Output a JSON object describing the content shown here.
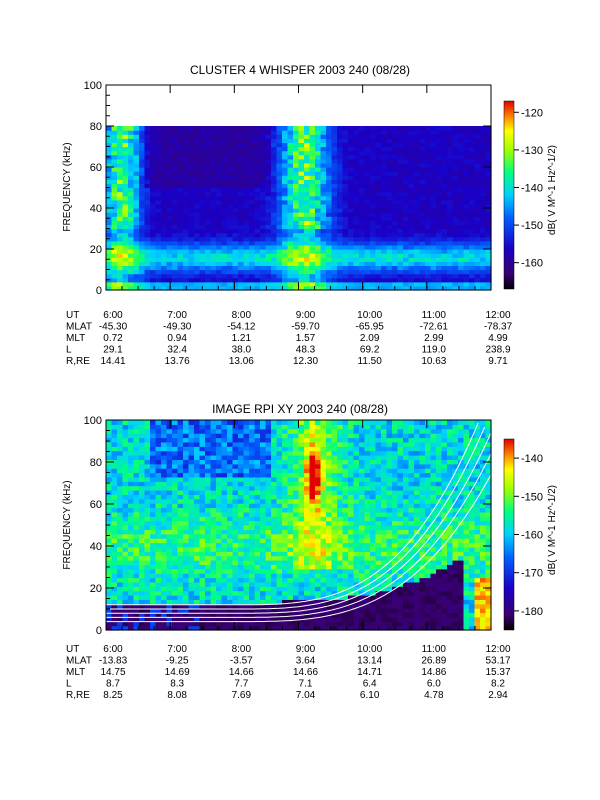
{
  "figure": "spectrogram pair",
  "panels": [
    {
      "id": "whisper",
      "title": "CLUSTER 4 WHISPER 2003 240 (08/28)",
      "ylabel": "FREQUENCY (kHz)",
      "ylim": [
        0,
        100
      ],
      "yticks": [
        "0",
        "20",
        "40",
        "60",
        "80",
        "100"
      ],
      "data_ymax": 80,
      "colorbar": {
        "label": "dB( V M^-1 Hz^-1/2)",
        "range": [
          -167,
          -117
        ],
        "ticks": [
          "-120",
          "-130",
          "-140",
          "-150",
          "-160"
        ]
      },
      "ephemeris_labels": [
        "UT",
        "MLAT",
        "MLT",
        "L",
        "R,RE"
      ],
      "ut": [
        "6:00",
        "7:00",
        "8:00",
        "9:00",
        "10:00",
        "11:00",
        "12:00"
      ],
      "mlat": [
        "-45.30",
        "-49.30",
        "-54.12",
        "-59.70",
        "-65.95",
        "-72.61",
        "-78.37"
      ],
      "mlt": [
        "0.72",
        "0.94",
        "1.21",
        "1.57",
        "2.09",
        "2.99",
        "4.99"
      ],
      "l": [
        "29.1",
        "32.4",
        "38.0",
        "48.3",
        "69.2",
        "119.0",
        "238.9"
      ],
      "r_re": [
        "14.41",
        "13.76",
        "13.06",
        "12.30",
        "11.50",
        "10.63",
        "9.71"
      ]
    },
    {
      "id": "rpi",
      "title": "IMAGE RPI XY 2003 240 (08/28)",
      "ylabel": "FREQUENCY (kHz)",
      "ylim": [
        0,
        100
      ],
      "yticks": [
        "0",
        "20",
        "40",
        "60",
        "80",
        "100"
      ],
      "data_ymax": 100,
      "colorbar": {
        "label": "dB( V M^-1 Hz^-1/2)",
        "range": [
          -185,
          -135
        ],
        "ticks": [
          "-140",
          "-150",
          "-160",
          "-170",
          "-180"
        ]
      },
      "ephemeris_labels": [
        "UT",
        "MLAT",
        "MLT",
        "L",
        "R,RE"
      ],
      "ut": [
        "6:00",
        "7:00",
        "8:00",
        "9:00",
        "10:00",
        "11:00",
        "12:00"
      ],
      "mlat": [
        "-13.83",
        "-9.25",
        "-3.57",
        "3.64",
        "13.14",
        "26.89",
        "53.17"
      ],
      "mlt": [
        "14.75",
        "14.69",
        "14.66",
        "14.66",
        "14.71",
        "14.86",
        "15.37"
      ],
      "l": [
        "8.7",
        "8.3",
        "7.7",
        "7.1",
        "6.4",
        "6.0",
        "8.2"
      ],
      "r_re": [
        "8.25",
        "8.08",
        "7.69",
        "7.04",
        "6.10",
        "4.78",
        "2.94"
      ]
    }
  ],
  "chart_data": [
    {
      "type": "heatmap",
      "title": "CLUSTER 4 WHISPER 2003 240 (08/28)",
      "xlabel": "",
      "ylabel": "FREQUENCY (kHz)",
      "x": [
        "6:00",
        "7:00",
        "8:00",
        "9:00",
        "10:00",
        "11:00",
        "12:00"
      ],
      "xlim": [
        "6:00",
        "12:00"
      ],
      "ylim": [
        0,
        100
      ],
      "colorbar_range_dB": [
        -167,
        -117
      ],
      "features": [
        {
          "description_from_axes": "broadband emission 0-80 kHz",
          "ut_start": "6:00",
          "ut_end": "6:40"
        },
        {
          "description_from_axes": "broadband emission 0-80 kHz",
          "ut_start": "8:30",
          "ut_end": "9:20"
        },
        {
          "description_from_axes": "band 10-25 kHz",
          "ut_start": "6:00",
          "ut_end": "12:00"
        }
      ]
    },
    {
      "type": "heatmap",
      "title": "IMAGE RPI XY 2003 240 (08/28)",
      "xlabel": "",
      "ylabel": "FREQUENCY (kHz)",
      "x": [
        "6:00",
        "7:00",
        "8:00",
        "9:00",
        "10:00",
        "11:00",
        "12:00"
      ],
      "xlim": [
        "6:00",
        "12:00"
      ],
      "ylim": [
        0,
        100
      ],
      "colorbar_range_dB": [
        -185,
        -135
      ],
      "features": [
        {
          "description_from_axes": "intense emission 55-90 kHz",
          "ut_start": "9:05",
          "ut_end": "9:20"
        },
        {
          "description_from_axes": "low-frequency cutoff rising from ~10 kHz",
          "ut_start": "8:30",
          "ut_end": "12:00"
        }
      ]
    }
  ]
}
